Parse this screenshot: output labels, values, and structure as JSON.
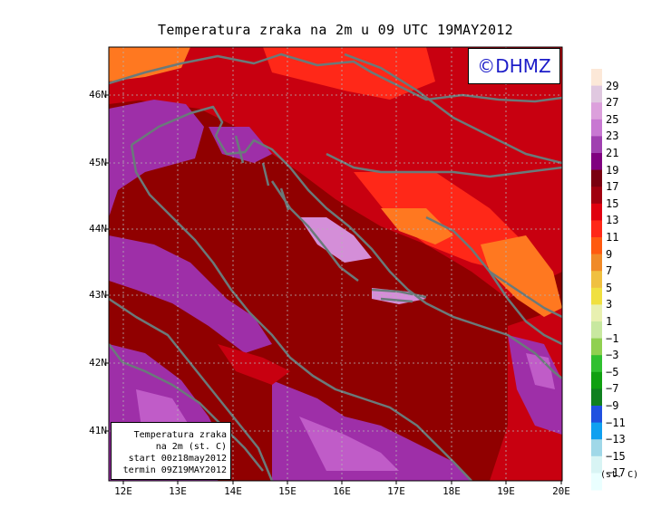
{
  "title": "Temperatura zraka na 2m u 09 UTC 19MAY2012",
  "logo": "©DHMZ",
  "info": {
    "line1": "Temperatura zraka",
    "line2": "na 2m (st. C)",
    "line3": "start 00z18may2012",
    "line4": "termin 09Z19MAY2012"
  },
  "lat_labels": [
    "46N",
    "45N",
    "44N",
    "43N",
    "42N",
    "41N"
  ],
  "lon_labels": [
    "12E",
    "13E",
    "14E",
    "15E",
    "16E",
    "17E",
    "18E",
    "19E",
    "20E"
  ],
  "legend": {
    "unit": "(st. C)",
    "labels": [
      "29",
      "27",
      "25",
      "23",
      "21",
      "19",
      "17",
      "15",
      "13",
      "11",
      "9",
      "7",
      "5",
      "3",
      "1",
      "−1",
      "−3",
      "−5",
      "−7",
      "−9",
      "−11",
      "−13",
      "−15",
      "−17"
    ],
    "colors": [
      "#fce8d8",
      "#e0c8e0",
      "#dca0dc",
      "#c878d2",
      "#a040b0",
      "#800080",
      "#7a0010",
      "#a00010",
      "#e00010",
      "#ff2818",
      "#ff5a10",
      "#f08a28",
      "#f0c040",
      "#f0e040",
      "#e8f0b0",
      "#c8e8a0",
      "#90d050",
      "#30c030",
      "#10a010",
      "#108020",
      "#2050e0",
      "#10a0f0",
      "#a0d8e8",
      "#d8f4f4",
      "#eaffff"
    ]
  },
  "map": {
    "background_color": "#900000",
    "colors": {
      "dark_red": "#900000",
      "red": "#c80010",
      "bright_red": "#ff2818",
      "orange_red": "#ff4a18",
      "orange": "#ff7820",
      "purple": "#9e2fa8",
      "magenta": "#c05cc8",
      "light_purple": "#d48ed8",
      "coast": "#6a7a7a"
    }
  }
}
